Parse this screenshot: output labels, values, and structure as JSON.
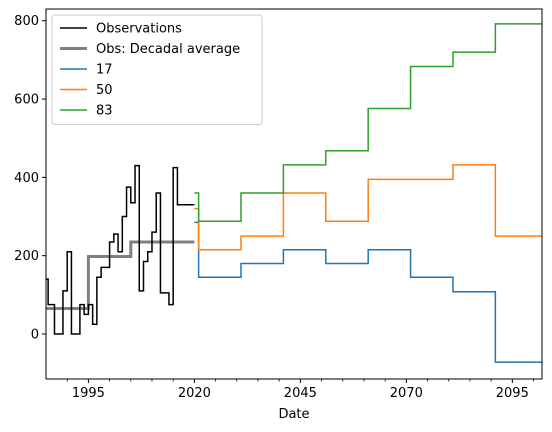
{
  "chart_data": {
    "type": "line",
    "step": true,
    "xlabel": "Date",
    "ylabel": "",
    "xlim": [
      1985,
      2102
    ],
    "ylim": [
      -115,
      830
    ],
    "xticks": [
      1995,
      2020,
      2045,
      2070,
      2095
    ],
    "xticks_minor": [
      1990,
      2000,
      2005,
      2010,
      2015,
      2025,
      2030,
      2035,
      2040,
      2050,
      2055,
      2060,
      2065,
      2075,
      2080,
      2085,
      2090,
      2100
    ],
    "yticks": [
      0,
      200,
      400,
      600,
      800
    ],
    "grid": false,
    "legend_position": "top-left",
    "series": [
      {
        "name": "Observations",
        "color": "#000000",
        "width": 1.5,
        "x": [
          1985,
          1985.5,
          1987,
          1989,
          1990,
          1991,
          1992,
          1993,
          1994,
          1995,
          1996,
          1997,
          1998,
          1999,
          2000,
          2001,
          2002,
          2003,
          2004,
          2005,
          2006,
          2007,
          2008,
          2009,
          2010,
          2011,
          2012,
          2013,
          2014,
          2015,
          2016,
          2017,
          2018,
          2019,
          2020
        ],
        "y": [
          140,
          75,
          0,
          110,
          210,
          0,
          0,
          75,
          50,
          75,
          25,
          145,
          170,
          170,
          235,
          255,
          210,
          300,
          375,
          335,
          430,
          110,
          185,
          210,
          260,
          360,
          105,
          105,
          75,
          425,
          330,
          330,
          330,
          330,
          330
        ]
      },
      {
        "name": "Obs: Decadal average",
        "color": "#808080",
        "width": 3,
        "x": [
          1985,
          1995,
          1995,
          2005,
          2005,
          2015,
          2020
        ],
        "y": [
          65,
          65,
          198,
          198,
          235,
          235,
          235
        ]
      },
      {
        "name": "17",
        "color": "#1f77b4",
        "width": 1.5,
        "x": [
          2020,
          2021,
          2031,
          2041,
          2051,
          2061,
          2071,
          2081,
          2091,
          2102
        ],
        "y": [
          285,
          145,
          180,
          215,
          180,
          215,
          145,
          108,
          -72,
          -72
        ]
      },
      {
        "name": "50",
        "color": "#ff7f0e",
        "width": 1.5,
        "x": [
          2020,
          2021,
          2031,
          2041,
          2051,
          2061,
          2071,
          2081,
          2091,
          2102
        ],
        "y": [
          320,
          215,
          250,
          360,
          288,
          395,
          395,
          432,
          250,
          250
        ]
      },
      {
        "name": "83",
        "color": "#2ca02c",
        "width": 1.5,
        "x": [
          2020,
          2021,
          2031,
          2041,
          2051,
          2061,
          2071,
          2081,
          2091,
          2102
        ],
        "y": [
          360,
          288,
          360,
          432,
          468,
          576,
          683,
          720,
          792,
          792
        ]
      }
    ]
  }
}
